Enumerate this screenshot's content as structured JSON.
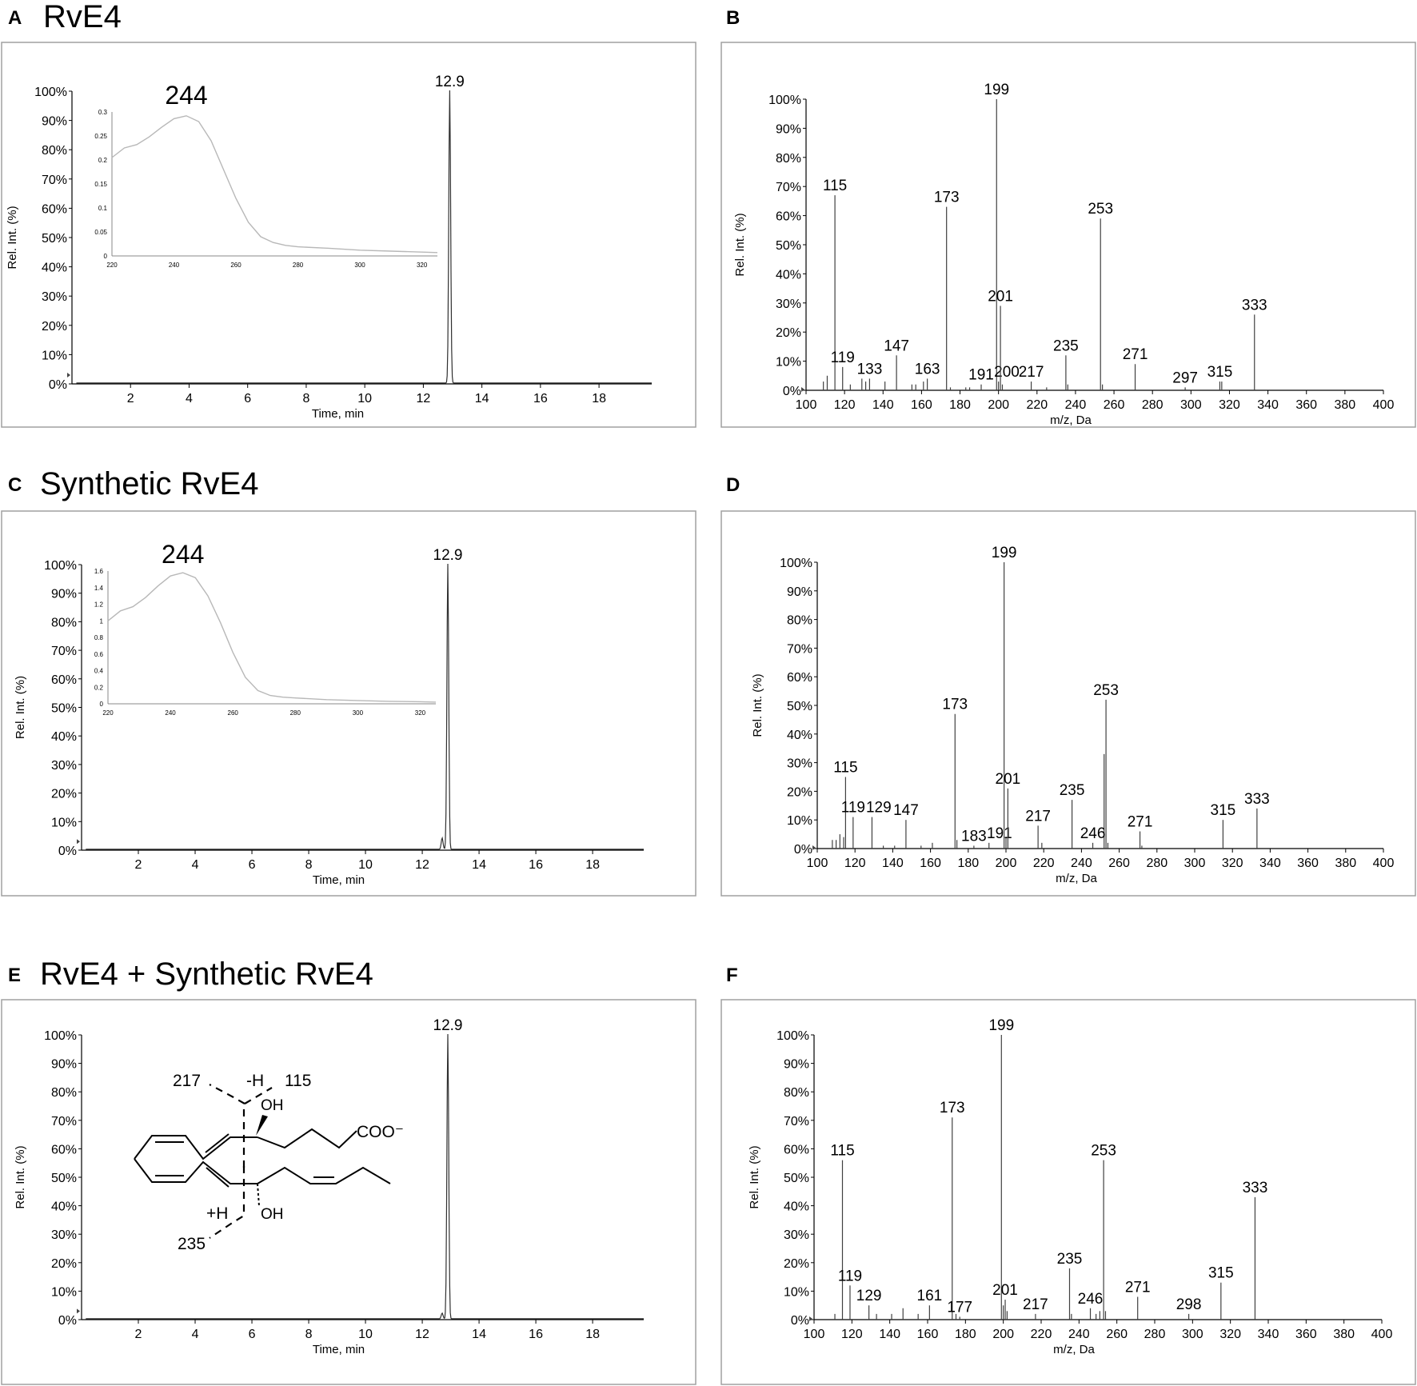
{
  "panels": [
    {
      "letter": "A",
      "title": "RvE4"
    },
    {
      "letter": "B",
      "title": ""
    },
    {
      "letter": "C",
      "title": "Synthetic RvE4"
    },
    {
      "letter": "D",
      "title": ""
    },
    {
      "letter": "E",
      "title": "RvE4 + Synthetic RvE4"
    },
    {
      "letter": "F",
      "title": ""
    }
  ],
  "chart_data": [
    {
      "id": "A",
      "type": "line",
      "title": "RvE4",
      "xlabel": "Time, min",
      "ylabel": "Rel. Int. (%)",
      "xlim": [
        0,
        19.8
      ],
      "ylim": [
        0,
        100
      ],
      "xticks": [
        2,
        4,
        6,
        8,
        10,
        12,
        14,
        16,
        18
      ],
      "yticks": [
        "0%",
        "10%",
        "20%",
        "30%",
        "40%",
        "50%",
        "60%",
        "70%",
        "80%",
        "90%",
        "100%"
      ],
      "peaks": [
        {
          "x": 12.9,
          "y": 100,
          "label": "12.9"
        }
      ],
      "inset": {
        "type": "line",
        "label": "244",
        "xlim": [
          220,
          325
        ],
        "ylim": [
          0,
          0.3
        ],
        "xticks": [
          "220",
          "240",
          "260",
          "280",
          "300",
          "320"
        ],
        "yticks": [
          "0",
          "0.05",
          "0.1",
          "0.15",
          "0.2",
          "0.25",
          "0.3"
        ],
        "x": [
          220,
          224,
          228,
          232,
          236,
          240,
          244,
          248,
          252,
          256,
          260,
          264,
          268,
          272,
          276,
          280,
          290,
          300,
          310,
          320,
          325
        ],
        "y": [
          0.205,
          0.225,
          0.232,
          0.248,
          0.268,
          0.286,
          0.292,
          0.28,
          0.24,
          0.18,
          0.12,
          0.07,
          0.04,
          0.028,
          0.022,
          0.019,
          0.016,
          0.012,
          0.01,
          0.008,
          0.007
        ]
      }
    },
    {
      "id": "B",
      "type": "bar",
      "xlabel": "m/z, Da",
      "ylabel": "Rel. Int. (%)",
      "xlim": [
        100,
        400
      ],
      "ylim": [
        0,
        100
      ],
      "xticks": [
        100,
        120,
        140,
        160,
        180,
        200,
        220,
        240,
        260,
        280,
        300,
        320,
        340,
        360,
        380,
        400
      ],
      "yticks": [
        "0%",
        "10%",
        "20%",
        "30%",
        "40%",
        "50%",
        "60%",
        "70%",
        "80%",
        "90%",
        "100%"
      ],
      "peaks": [
        {
          "x": 115,
          "y": 67,
          "label": "115"
        },
        {
          "x": 119,
          "y": 8,
          "label": "119"
        },
        {
          "x": 133,
          "y": 4,
          "label": "133"
        },
        {
          "x": 147,
          "y": 12,
          "label": "147"
        },
        {
          "x": 163,
          "y": 4,
          "label": "163"
        },
        {
          "x": 173,
          "y": 63,
          "label": "173"
        },
        {
          "x": 191,
          "y": 2,
          "label": "191"
        },
        {
          "x": 199,
          "y": 100,
          "label": "199"
        },
        {
          "x": 200,
          "y": 3,
          "label": "200"
        },
        {
          "x": 201,
          "y": 29,
          "label": "201"
        },
        {
          "x": 217,
          "y": 3,
          "label": "217"
        },
        {
          "x": 235,
          "y": 12,
          "label": "235"
        },
        {
          "x": 253,
          "y": 59,
          "label": "253"
        },
        {
          "x": 271,
          "y": 9,
          "label": "271"
        },
        {
          "x": 297,
          "y": 1,
          "label": "297"
        },
        {
          "x": 315,
          "y": 3,
          "label": "315"
        },
        {
          "x": 333,
          "y": 26,
          "label": "333"
        }
      ],
      "minor_peaks": [
        {
          "x": 109,
          "y": 3
        },
        {
          "x": 111,
          "y": 5
        },
        {
          "x": 123,
          "y": 2
        },
        {
          "x": 129,
          "y": 4
        },
        {
          "x": 131,
          "y": 3
        },
        {
          "x": 141,
          "y": 3
        },
        {
          "x": 155,
          "y": 2
        },
        {
          "x": 157,
          "y": 2
        },
        {
          "x": 161,
          "y": 3
        },
        {
          "x": 175,
          "y": 1
        },
        {
          "x": 183,
          "y": 1
        },
        {
          "x": 185,
          "y": 1
        },
        {
          "x": 202,
          "y": 2
        },
        {
          "x": 225,
          "y": 1
        },
        {
          "x": 236,
          "y": 2
        },
        {
          "x": 254,
          "y": 2
        },
        {
          "x": 316,
          "y": 3
        }
      ]
    },
    {
      "id": "C",
      "type": "line",
      "title": "Synthetic RvE4",
      "xlabel": "Time, min",
      "ylabel": "Rel. Int. (%)",
      "xlim": [
        0,
        19.8
      ],
      "ylim": [
        0,
        100
      ],
      "xticks": [
        2,
        4,
        6,
        8,
        10,
        12,
        14,
        16,
        18
      ],
      "yticks": [
        "0%",
        "10%",
        "20%",
        "30%",
        "40%",
        "50%",
        "60%",
        "70%",
        "80%",
        "90%",
        "100%"
      ],
      "peaks": [
        {
          "x": 12.9,
          "y": 100,
          "label": "12.9"
        },
        {
          "x": 12.7,
          "y": 4
        }
      ],
      "inset": {
        "type": "line",
        "label": "244",
        "xlim": [
          220,
          325
        ],
        "ylim": [
          0,
          1.6
        ],
        "xticks": [
          "220",
          "240",
          "260",
          "280",
          "300",
          "320"
        ],
        "yticks": [
          "0",
          "0.2",
          "0.4",
          "0.6",
          "0.8",
          "1",
          "1.2",
          "1.4",
          "1.6"
        ],
        "x": [
          220,
          224,
          228,
          232,
          236,
          240,
          244,
          248,
          252,
          256,
          260,
          264,
          268,
          272,
          276,
          280,
          290,
          300,
          310,
          320,
          325
        ],
        "y": [
          1.0,
          1.12,
          1.17,
          1.28,
          1.42,
          1.54,
          1.58,
          1.52,
          1.3,
          0.98,
          0.62,
          0.32,
          0.16,
          0.1,
          0.08,
          0.07,
          0.05,
          0.04,
          0.03,
          0.025,
          0.02
        ]
      }
    },
    {
      "id": "D",
      "type": "bar",
      "xlabel": "m/z, Da",
      "ylabel": "Rel. Int. (%)",
      "xlim": [
        100,
        400
      ],
      "ylim": [
        0,
        100
      ],
      "xticks": [
        100,
        120,
        140,
        160,
        180,
        200,
        220,
        240,
        260,
        280,
        300,
        320,
        340,
        360,
        380,
        400
      ],
      "yticks": [
        "0%",
        "10%",
        "20%",
        "30%",
        "40%",
        "50%",
        "60%",
        "70%",
        "80%",
        "90%",
        "100%"
      ],
      "peaks": [
        {
          "x": 115,
          "y": 25,
          "label": "115"
        },
        {
          "x": 119,
          "y": 11,
          "label": "119"
        },
        {
          "x": 129,
          "y": 11,
          "label": "129"
        },
        {
          "x": 147,
          "y": 10,
          "label": "147"
        },
        {
          "x": 173,
          "y": 47,
          "label": "173"
        },
        {
          "x": 183,
          "y": 1,
          "label": "183"
        },
        {
          "x": 191,
          "y": 2,
          "label": "191"
        },
        {
          "x": 199,
          "y": 100,
          "label": "199"
        },
        {
          "x": 201,
          "y": 21,
          "label": "201"
        },
        {
          "x": 217,
          "y": 8,
          "label": "217"
        },
        {
          "x": 235,
          "y": 17,
          "label": "235"
        },
        {
          "x": 246,
          "y": 2,
          "label": "246"
        },
        {
          "x": 253,
          "y": 52,
          "label": "253"
        },
        {
          "x": 271,
          "y": 6,
          "label": "271"
        },
        {
          "x": 315,
          "y": 10,
          "label": "315"
        },
        {
          "x": 333,
          "y": 14,
          "label": "333"
        }
      ],
      "minor_peaks": [
        {
          "x": 108,
          "y": 3
        },
        {
          "x": 110,
          "y": 3
        },
        {
          "x": 112,
          "y": 5
        },
        {
          "x": 114,
          "y": 4
        },
        {
          "x": 135,
          "y": 1
        },
        {
          "x": 141,
          "y": 1
        },
        {
          "x": 155,
          "y": 1
        },
        {
          "x": 161,
          "y": 2
        },
        {
          "x": 174,
          "y": 3
        },
        {
          "x": 200,
          "y": 4
        },
        {
          "x": 219,
          "y": 2
        },
        {
          "x": 252,
          "y": 33
        },
        {
          "x": 254,
          "y": 2
        },
        {
          "x": 272,
          "y": 1
        }
      ]
    },
    {
      "id": "E",
      "type": "line",
      "title": "RvE4 + Synthetic RvE4",
      "xlabel": "Time, min",
      "ylabel": "Rel. Int. (%)",
      "xlim": [
        0,
        19.8
      ],
      "ylim": [
        0,
        100
      ],
      "xticks": [
        2,
        4,
        6,
        8,
        10,
        12,
        14,
        16,
        18
      ],
      "yticks": [
        "0%",
        "10%",
        "20%",
        "30%",
        "40%",
        "50%",
        "60%",
        "70%",
        "80%",
        "90%",
        "100%"
      ],
      "peaks": [
        {
          "x": 12.9,
          "y": 100,
          "label": "12.9"
        },
        {
          "x": 12.7,
          "y": 2
        }
      ],
      "structure": {
        "labels": [
          "217",
          "-H",
          "115",
          "OH",
          "COO⁻",
          "+H",
          "235",
          "OH"
        ]
      }
    },
    {
      "id": "F",
      "type": "bar",
      "xlabel": "m/z, Da",
      "ylabel": "Rel. Int. (%)",
      "xlim": [
        100,
        400
      ],
      "ylim": [
        0,
        100
      ],
      "xticks": [
        100,
        120,
        140,
        160,
        180,
        200,
        220,
        240,
        260,
        280,
        300,
        320,
        340,
        360,
        380,
        400
      ],
      "yticks": [
        "0%",
        "10%",
        "20%",
        "30%",
        "40%",
        "50%",
        "60%",
        "70%",
        "80%",
        "90%",
        "100%"
      ],
      "peaks": [
        {
          "x": 115,
          "y": 56,
          "label": "115"
        },
        {
          "x": 119,
          "y": 12,
          "label": "119"
        },
        {
          "x": 129,
          "y": 5,
          "label": "129"
        },
        {
          "x": 161,
          "y": 5,
          "label": "161"
        },
        {
          "x": 173,
          "y": 71,
          "label": "173"
        },
        {
          "x": 177,
          "y": 1,
          "label": "177"
        },
        {
          "x": 199,
          "y": 100,
          "label": "199"
        },
        {
          "x": 201,
          "y": 7,
          "label": "201"
        },
        {
          "x": 217,
          "y": 2,
          "label": "217"
        },
        {
          "x": 235,
          "y": 18,
          "label": "235"
        },
        {
          "x": 246,
          "y": 4,
          "label": "246"
        },
        {
          "x": 253,
          "y": 56,
          "label": "253"
        },
        {
          "x": 271,
          "y": 8,
          "label": "271"
        },
        {
          "x": 298,
          "y": 2,
          "label": "298"
        },
        {
          "x": 315,
          "y": 13,
          "label": "315"
        },
        {
          "x": 333,
          "y": 43,
          "label": "333"
        }
      ],
      "minor_peaks": [
        {
          "x": 111,
          "y": 2
        },
        {
          "x": 133,
          "y": 2
        },
        {
          "x": 141,
          "y": 2
        },
        {
          "x": 147,
          "y": 4
        },
        {
          "x": 155,
          "y": 2
        },
        {
          "x": 175,
          "y": 2
        },
        {
          "x": 200,
          "y": 5
        },
        {
          "x": 202,
          "y": 3
        },
        {
          "x": 236,
          "y": 2
        },
        {
          "x": 249,
          "y": 2
        },
        {
          "x": 251,
          "y": 3
        },
        {
          "x": 254,
          "y": 3
        }
      ]
    }
  ]
}
